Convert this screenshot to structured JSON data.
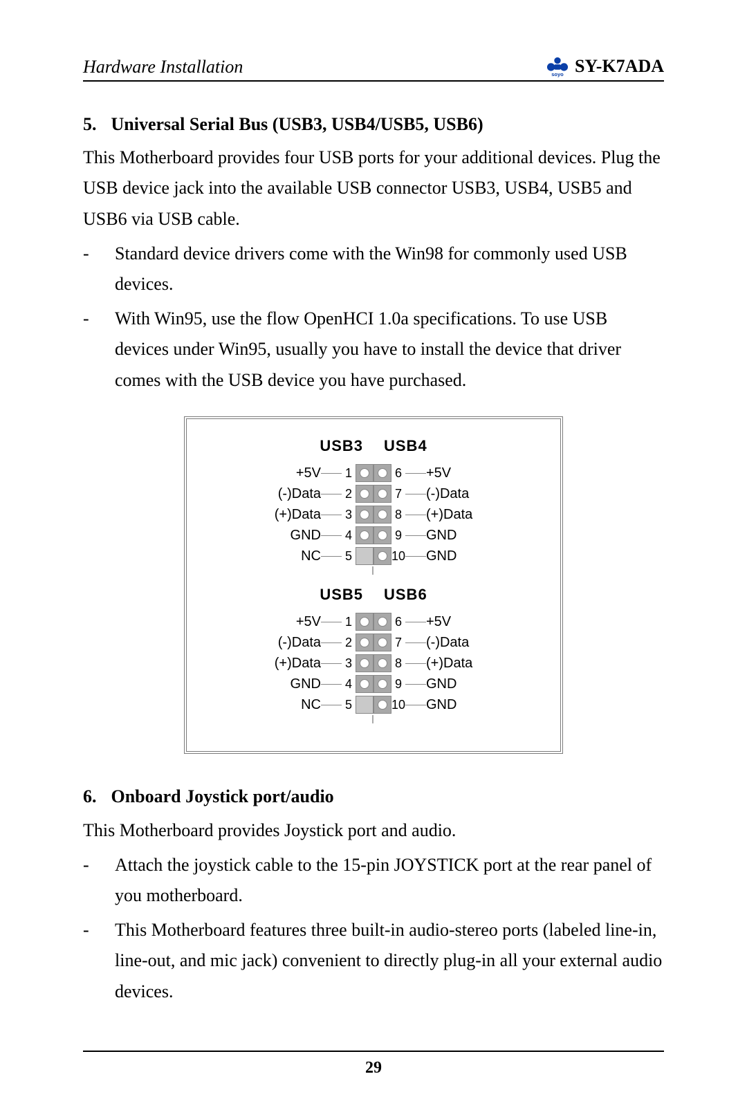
{
  "header": {
    "left": "Hardware Installation",
    "right": "SY-K7ADA",
    "logo_primary": "#0a3fa8",
    "logo_top": "#0a3fa8",
    "logo_sub": "soyo"
  },
  "section5": {
    "num": "5.",
    "title": "Universal Serial Bus (USB3, USB4/USB5, USB6)",
    "p1": "This Motherboard provides four USB ports for your additional devices. Plug the USB device jack into the available USB connector USB3, USB4, USB5 and USB6 via USB cable.",
    "li1": "Standard device drivers come with the Win98 for commonly used USB devices.",
    "li2": "With Win95, use the flow OpenHCI 1.0a specifications. To use USB devices under Win95, usually you have to install the device that driver comes with the USB device you have purchased."
  },
  "diagram": {
    "border_color": "#7a7a7a",
    "pin_border": "#888888",
    "pin_fill": "#a8a8a8",
    "pin_empty_fill": "#c9c9c9",
    "hole_fill": "#ffffff",
    "dash_color": "#888888",
    "font_family": "Arial",
    "title_fontsize": 22,
    "label_fontsize": 20,
    "blocks": [
      {
        "left_title": "USB3",
        "right_title": "USB4",
        "rows": [
          {
            "l": "+5V",
            "ln": "1",
            "left_pin": true,
            "right_pin": true,
            "rn": "6",
            "r": "+5V"
          },
          {
            "l": "(-)Data",
            "ln": "2",
            "left_pin": true,
            "right_pin": true,
            "rn": "7",
            "r": "(-)Data"
          },
          {
            "l": "(+)Data",
            "ln": "3",
            "left_pin": true,
            "right_pin": true,
            "rn": "8",
            "r": "(+)Data"
          },
          {
            "l": "GND",
            "ln": "4",
            "left_pin": true,
            "right_pin": true,
            "rn": "9",
            "r": "GND"
          },
          {
            "l": "NC",
            "ln": "5",
            "left_pin": false,
            "right_pin": true,
            "rn": "10",
            "r": "GND"
          }
        ]
      },
      {
        "left_title": "USB5",
        "right_title": "USB6",
        "rows": [
          {
            "l": "+5V",
            "ln": "1",
            "left_pin": true,
            "right_pin": true,
            "rn": "6",
            "r": "+5V"
          },
          {
            "l": "(-)Data",
            "ln": "2",
            "left_pin": true,
            "right_pin": true,
            "rn": "7",
            "r": "(-)Data"
          },
          {
            "l": "(+)Data",
            "ln": "3",
            "left_pin": true,
            "right_pin": true,
            "rn": "8",
            "r": "(+)Data"
          },
          {
            "l": "GND",
            "ln": "4",
            "left_pin": true,
            "right_pin": true,
            "rn": "9",
            "r": "GND"
          },
          {
            "l": "NC",
            "ln": "5",
            "left_pin": false,
            "right_pin": true,
            "rn": "10",
            "r": "GND"
          }
        ]
      }
    ]
  },
  "section6": {
    "num": "6.",
    "title": "Onboard Joystick port/audio",
    "p1": "This Motherboard provides Joystick port and audio.",
    "li1": "Attach the joystick cable to the 15-pin JOYSTICK port at the rear panel of you motherboard.",
    "li2": "This Motherboard features three built-in audio-stereo ports (labeled line-in, line-out, and mic jack) convenient to directly plug-in all your external audio devices."
  },
  "page_number": "29"
}
